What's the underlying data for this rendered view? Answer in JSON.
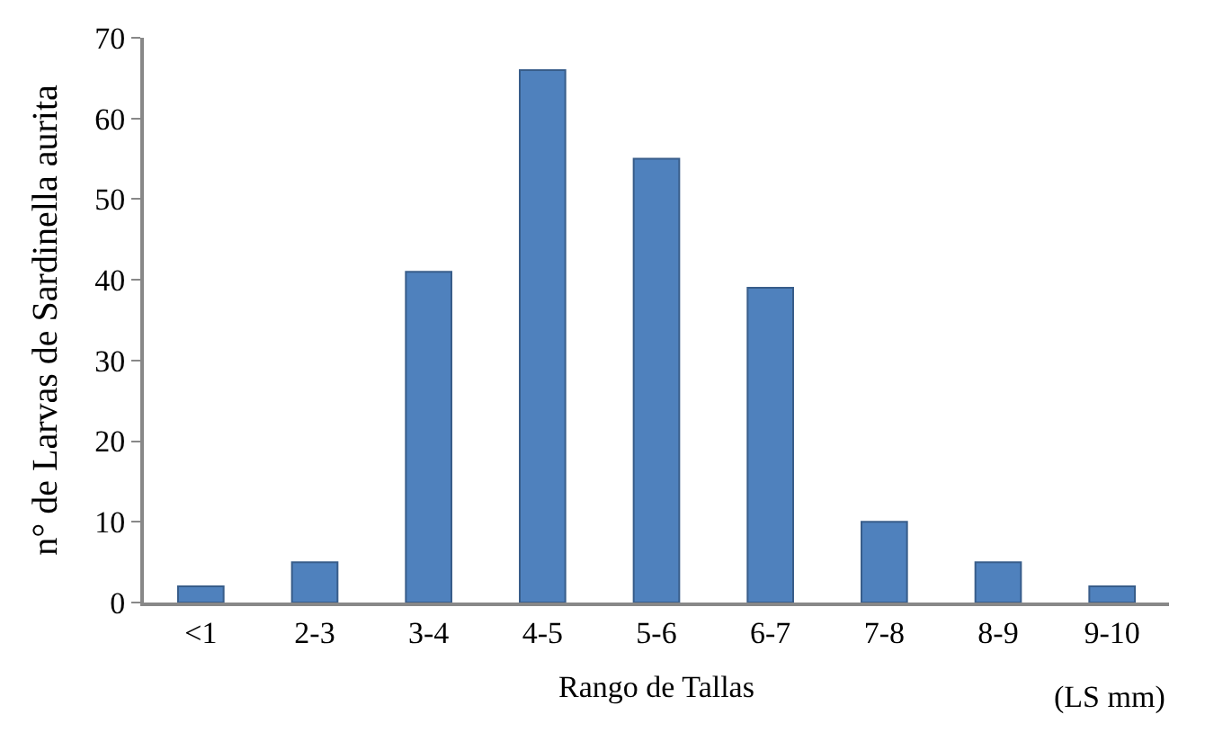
{
  "chart_data": {
    "type": "bar",
    "categories": [
      "<1",
      "2-3",
      "3-4",
      "4-5",
      "5-6",
      "6-7",
      "7-8",
      "8-9",
      "9-10"
    ],
    "values": [
      2,
      5,
      41,
      66,
      55,
      39,
      10,
      5,
      2
    ],
    "color": "#4f81bd",
    "xlabel": "Rango de Tallas",
    "ylabel": "n° de Larvas de Sardinella aurita",
    "annotations": [
      "(LS mm)"
    ],
    "ylim": [
      0,
      70
    ],
    "yticks": [
      0,
      10,
      20,
      30,
      40,
      50,
      60,
      70
    ],
    "legend": false
  }
}
